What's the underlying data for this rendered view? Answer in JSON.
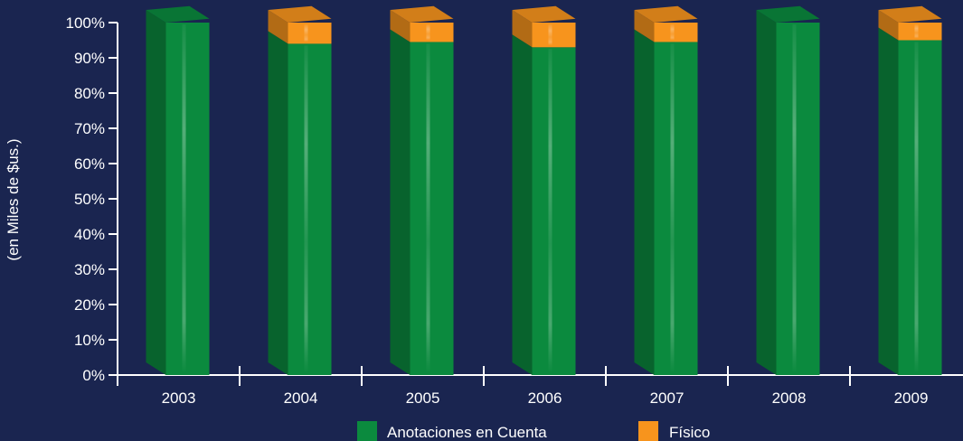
{
  "chart_data": {
    "type": "bar",
    "stacked": true,
    "percent": true,
    "title": "",
    "xlabel": "",
    "ylabel": "(en Miles de $us.)",
    "ylim": [
      0,
      100
    ],
    "y_ticks": [
      "0%",
      "10%",
      "20%",
      "30%",
      "40%",
      "50%",
      "60%",
      "70%",
      "80%",
      "90%",
      "100%"
    ],
    "categories": [
      "2003",
      "2004",
      "2005",
      "2006",
      "2007",
      "2008",
      "2009"
    ],
    "series": [
      {
        "name": "Anotaciones en Cuenta",
        "values": [
          100,
          94,
          94.5,
          93,
          94.5,
          100,
          95
        ],
        "color": "#0b8a3e"
      },
      {
        "name": "Físico",
        "values": [
          0,
          6,
          5.5,
          7,
          5.5,
          0,
          5
        ],
        "color": "#f7941d"
      }
    ],
    "grid": false,
    "legend": "bottom",
    "background": "#1a2550"
  }
}
